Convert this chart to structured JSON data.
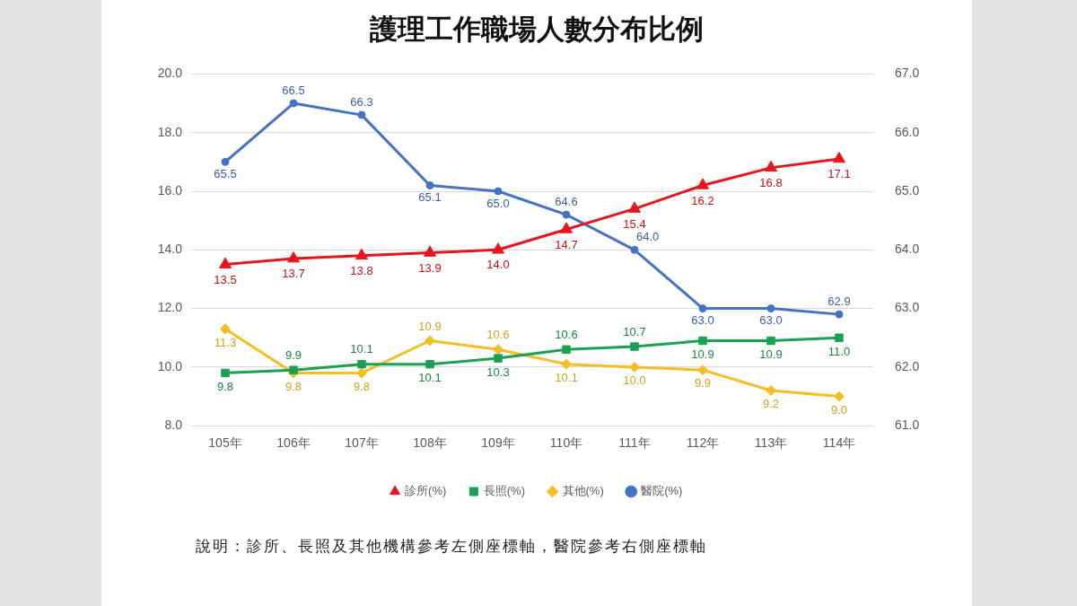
{
  "chart_data": {
    "type": "line",
    "title": "護理工作職場人數分布比例",
    "categories": [
      "105年",
      "106年",
      "107年",
      "108年",
      "109年",
      "110年",
      "111年",
      "112年",
      "113年",
      "114年"
    ],
    "series": [
      {
        "name": "診所(%)",
        "color": "#e8141c",
        "marker": "triangle",
        "values": [
          13.5,
          13.7,
          13.8,
          13.9,
          14.0,
          14.7,
          15.4,
          16.2,
          16.8,
          17.1
        ],
        "value_labels": [
          "13.5",
          "13.7",
          "13.8",
          "13.9",
          "14.0",
          "14.7",
          "15.4",
          "16.2",
          "16.8",
          "17.1"
        ]
      },
      {
        "name": "長照(%)",
        "color": "#1ba150",
        "marker": "square",
        "values": [
          9.8,
          9.9,
          10.1,
          10.1,
          10.3,
          10.6,
          10.7,
          10.9,
          10.9,
          11.0
        ],
        "value_labels": [
          "9.8",
          "9.9",
          "10.1",
          "10.1",
          "10.3",
          "10.6",
          "10.7",
          "10.9",
          "10.9",
          "11.0"
        ]
      },
      {
        "name": "其他(%)",
        "color": "#f5bf23",
        "marker": "diamond",
        "values": [
          11.3,
          9.8,
          9.8,
          10.9,
          10.6,
          10.1,
          10.0,
          9.9,
          9.2,
          9.0
        ],
        "value_labels": [
          "11.3",
          "9.8",
          "9.8",
          "10.9",
          "10.6",
          "10.1",
          "10.0",
          "9.9",
          "9.2",
          "9.0"
        ]
      },
      {
        "name": "醫院(%)",
        "color": "#4472c4",
        "marker": "circle",
        "axis": "y2",
        "values": [
          65.5,
          66.5,
          66.3,
          65.1,
          65.0,
          64.6,
          64.0,
          63.0,
          63.0,
          62.9
        ],
        "value_labels": [
          "65.5",
          "66.5",
          "66.3",
          "65.1",
          "65.0",
          "64.6",
          "64.0",
          "63.0",
          "63.0",
          "62.9"
        ]
      }
    ],
    "ylim": [
      8,
      20
    ],
    "yticks": [
      {
        "value": 8,
        "label": "8.0"
      },
      {
        "value": 10,
        "label": "10.0"
      },
      {
        "value": 12,
        "label": "12.0"
      },
      {
        "value": 14,
        "label": "14.0"
      },
      {
        "value": 16,
        "label": "16.0"
      },
      {
        "value": 18,
        "label": "18.0"
      },
      {
        "value": 20,
        "label": "20.0"
      }
    ],
    "y2lim": [
      61,
      67
    ],
    "y2ticks": [
      {
        "value": 61,
        "label": "61.0"
      },
      {
        "value": 62,
        "label": "62.0"
      },
      {
        "value": 63,
        "label": "63.0"
      },
      {
        "value": 64,
        "label": "64.0"
      },
      {
        "value": 65,
        "label": "65.0"
      },
      {
        "value": 66,
        "label": "66.0"
      },
      {
        "value": 67,
        "label": "67.0"
      }
    ],
    "grid": "y",
    "legend": "bottom",
    "annotations": [
      "說明：診所、長照及其他機構參考左側座標軸，醫院參考右側座標軸"
    ]
  }
}
